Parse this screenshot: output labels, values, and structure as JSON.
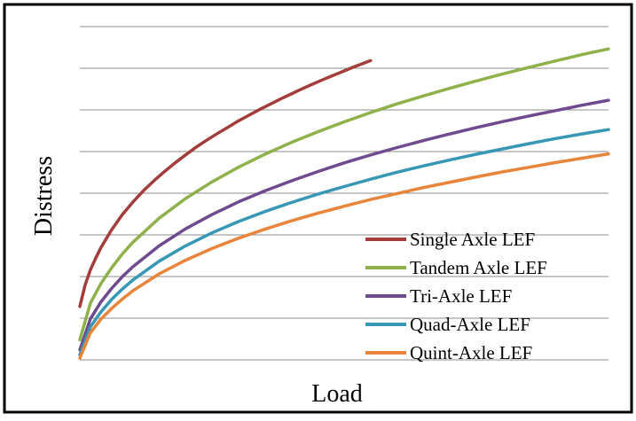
{
  "chart_data": {
    "type": "line",
    "title": "",
    "xlabel": "Load",
    "ylabel": "Distress",
    "grid": true,
    "legend_position": "bottom-right",
    "xlim": [
      0,
      100
    ],
    "ylim": [
      0,
      100
    ],
    "series": [
      {
        "name": "Single Axle LEF",
        "color": "#a33d3b",
        "x": [
          0,
          1,
          2,
          3,
          4,
          6,
          8,
          10,
          12,
          14,
          16,
          18,
          20,
          22,
          24,
          26,
          28,
          30,
          32,
          34,
          36,
          38,
          40,
          42,
          44,
          46,
          48,
          50,
          52,
          54,
          55
        ],
        "y": [
          16,
          22.5,
          27,
          30.5,
          33.7,
          39,
          43.5,
          47.3,
          50.7,
          53.7,
          56.5,
          59.1,
          61.5,
          63.8,
          65.9,
          67.9,
          69.8,
          71.7,
          73.4,
          75.1,
          76.7,
          78.3,
          79.8,
          81.3,
          82.7,
          84.1,
          85.4,
          86.7,
          88,
          89.2,
          89.8
        ]
      },
      {
        "name": "Tandem Axle LEF",
        "color": "#8eb14a",
        "x": [
          0,
          2,
          4,
          6,
          8,
          10,
          15,
          20,
          25,
          30,
          35,
          40,
          45,
          50,
          55,
          60,
          65,
          70,
          75,
          80,
          85,
          90,
          95,
          100
        ],
        "y": [
          6,
          17,
          22.9,
          27.6,
          31.7,
          35.2,
          42.5,
          48.4,
          53.4,
          57.8,
          61.7,
          65.2,
          68.4,
          71.4,
          74.2,
          76.8,
          79.2,
          81.5,
          83.7,
          85.8,
          87.8,
          89.7,
          91.6,
          93.3
        ]
      },
      {
        "name": "Tri-Axle LEF",
        "color": "#6f4a8f",
        "x": [
          0,
          2,
          4,
          6,
          8,
          10,
          15,
          20,
          25,
          30,
          35,
          40,
          45,
          50,
          55,
          60,
          65,
          70,
          75,
          80,
          85,
          90,
          95,
          100
        ],
        "y": [
          3,
          12.3,
          17.4,
          21.4,
          24.9,
          27.9,
          34.2,
          39.3,
          43.6,
          47.4,
          50.7,
          53.7,
          56.5,
          59.1,
          61.5,
          63.7,
          65.8,
          67.8,
          69.7,
          71.5,
          73.2,
          74.8,
          76.4,
          77.9
        ]
      },
      {
        "name": "Quad-Axle LEF",
        "color": "#3897b5",
        "x": [
          0,
          2,
          4,
          6,
          8,
          10,
          15,
          20,
          25,
          30,
          35,
          40,
          45,
          50,
          55,
          60,
          65,
          70,
          75,
          80,
          85,
          90,
          95,
          100
        ],
        "y": [
          1.5,
          9.9,
          14.4,
          18.1,
          21.2,
          23.9,
          29.6,
          34.2,
          38.1,
          41.5,
          44.5,
          47.2,
          49.7,
          52,
          54.2,
          56.3,
          58.2,
          60,
          61.7,
          63.3,
          64.9,
          66.4,
          67.8,
          69.1
        ]
      },
      {
        "name": "Quint-Axle LEF",
        "color": "#e9843b",
        "x": [
          0,
          2,
          4,
          6,
          8,
          10,
          15,
          20,
          25,
          30,
          35,
          40,
          45,
          50,
          55,
          60,
          65,
          70,
          75,
          80,
          85,
          90,
          95,
          100
        ],
        "y": [
          0.5,
          8.1,
          12.2,
          15.4,
          18.2,
          20.7,
          25.8,
          29.9,
          33.4,
          36.5,
          39.2,
          41.7,
          44,
          46.1,
          48.1,
          49.9,
          51.7,
          53.3,
          54.9,
          56.4,
          57.8,
          59.2,
          60.5,
          61.8
        ]
      }
    ]
  }
}
